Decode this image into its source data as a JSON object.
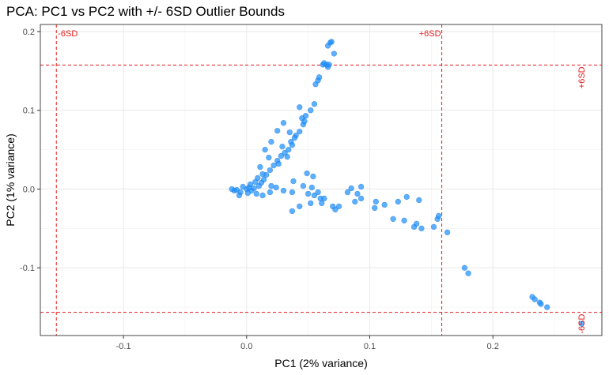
{
  "chart_data": {
    "type": "scatter",
    "title": "PCA: PC1 vs PC2 with +/- 6SD Outlier Bounds",
    "xlabel": "PC1 (2% variance)",
    "ylabel": "PC2 (1% variance)",
    "xlim": [
      -0.1675,
      0.2885
    ],
    "ylim": [
      -0.186,
      0.209
    ],
    "x_ticks": [
      -0.1,
      0.0,
      0.1,
      0.2
    ],
    "x_tick_labels": [
      "-0.1",
      "0.0",
      "0.1",
      "0.2"
    ],
    "y_ticks": [
      -0.1,
      0.0,
      0.1,
      0.2
    ],
    "y_tick_labels": [
      "-0.1",
      "0.0",
      "0.1",
      "0.2"
    ],
    "grid": true,
    "point_color": "#1e90ff",
    "bounds_color": "#e41a1c",
    "bounds": {
      "pc1_lower": -0.1545,
      "pc1_upper": 0.1585,
      "pc2_lower": -0.1565,
      "pc2_upper": 0.1575,
      "label_minus": "-6SD",
      "label_plus": "+6SD"
    },
    "series": [
      {
        "points": [
          [
            0.0,
            0.0
          ],
          [
            -0.008,
            -0.001
          ],
          [
            -0.005,
            -0.004
          ],
          [
            -0.01,
            -0.002
          ],
          [
            -0.012,
            0.0
          ],
          [
            0.002,
            0.002
          ],
          [
            0.004,
            -0.002
          ],
          [
            0.006,
            0.001
          ],
          [
            -0.003,
            0.003
          ],
          [
            0.001,
            -0.005
          ],
          [
            0.008,
            -0.006
          ],
          [
            -0.006,
            -0.008
          ],
          [
            0.003,
            0.006
          ],
          [
            0.01,
            0.004
          ],
          [
            0.012,
            0.008
          ],
          [
            0.014,
            0.012
          ],
          [
            0.016,
            0.018
          ],
          [
            0.019,
            0.024
          ],
          [
            0.022,
            0.03
          ],
          [
            0.025,
            0.036
          ],
          [
            0.028,
            0.042
          ],
          [
            0.031,
            0.046
          ],
          [
            0.034,
            0.05
          ],
          [
            0.037,
            0.056
          ],
          [
            0.04,
            0.068
          ],
          [
            0.035,
            0.072
          ],
          [
            0.03,
            0.084
          ],
          [
            0.025,
            0.074
          ],
          [
            0.02,
            0.06
          ],
          [
            0.015,
            0.05
          ],
          [
            0.018,
            0.04
          ],
          [
            0.011,
            0.028
          ],
          [
            0.026,
            0.032
          ],
          [
            0.036,
            0.06
          ],
          [
            0.043,
            0.073
          ],
          [
            0.046,
            0.082
          ],
          [
            0.045,
            0.09
          ],
          [
            0.048,
            0.093
          ],
          [
            0.052,
            0.1
          ],
          [
            0.055,
            0.108
          ],
          [
            0.056,
            0.133
          ],
          [
            0.058,
            0.138
          ],
          [
            0.059,
            0.142
          ],
          [
            0.062,
            0.158
          ],
          [
            0.063,
            0.16
          ],
          [
            0.066,
            0.155
          ],
          [
            0.065,
            0.158
          ],
          [
            0.067,
            0.158
          ],
          [
            0.071,
            0.172
          ],
          [
            0.066,
            0.182
          ],
          [
            0.068,
            0.186
          ],
          [
            0.069,
            0.187
          ],
          [
            0.047,
            0.086
          ],
          [
            0.043,
            0.104
          ],
          [
            0.039,
            0.065
          ],
          [
            0.033,
            0.041
          ],
          [
            0.029,
            0.054
          ],
          [
            0.013,
            0.019
          ],
          [
            0.009,
            0.014
          ],
          [
            0.007,
            0.009
          ],
          [
            0.013,
            -0.008
          ],
          [
            0.019,
            -0.004
          ],
          [
            0.024,
            0.002
          ],
          [
            0.03,
            -0.002
          ],
          [
            0.037,
            -0.004
          ],
          [
            0.05,
            -0.006
          ],
          [
            0.055,
            -0.008
          ],
          [
            0.06,
            -0.012
          ],
          [
            0.052,
            -0.018
          ],
          [
            0.043,
            -0.022
          ],
          [
            0.037,
            -0.028
          ],
          [
            0.058,
            -0.004
          ],
          [
            0.053,
            0.002
          ],
          [
            0.046,
            0.004
          ],
          [
            0.054,
            0.016
          ],
          [
            0.061,
            -0.018
          ],
          [
            0.063,
            -0.012
          ],
          [
            0.07,
            -0.022
          ],
          [
            0.072,
            -0.026
          ],
          [
            0.075,
            -0.022
          ],
          [
            0.082,
            -0.004
          ],
          [
            0.085,
            0.001
          ],
          [
            0.09,
            -0.006
          ],
          [
            0.093,
            0.003
          ],
          [
            0.088,
            -0.016
          ],
          [
            0.093,
            -0.012
          ],
          [
            0.105,
            -0.016
          ],
          [
            0.104,
            -0.024
          ],
          [
            0.112,
            -0.02
          ],
          [
            0.123,
            -0.016
          ],
          [
            0.14,
            -0.014
          ],
          [
            0.13,
            -0.01
          ],
          [
            0.119,
            -0.038
          ],
          [
            0.128,
            -0.04
          ],
          [
            0.136,
            -0.048
          ],
          [
            0.138,
            -0.044
          ],
          [
            0.142,
            -0.05
          ],
          [
            0.152,
            -0.048
          ],
          [
            0.155,
            -0.038
          ],
          [
            0.156,
            -0.034
          ],
          [
            0.163,
            -0.055
          ],
          [
            0.177,
            -0.1
          ],
          [
            0.18,
            -0.107
          ],
          [
            0.232,
            -0.137
          ],
          [
            0.234,
            -0.14
          ],
          [
            0.238,
            -0.144
          ],
          [
            0.239,
            -0.146
          ],
          [
            0.244,
            -0.15
          ],
          [
            0.272,
            -0.171
          ],
          [
            0.049,
            0.02
          ],
          [
            0.038,
            0.01
          ],
          [
            0.02,
            0.004
          ]
        ]
      }
    ]
  }
}
